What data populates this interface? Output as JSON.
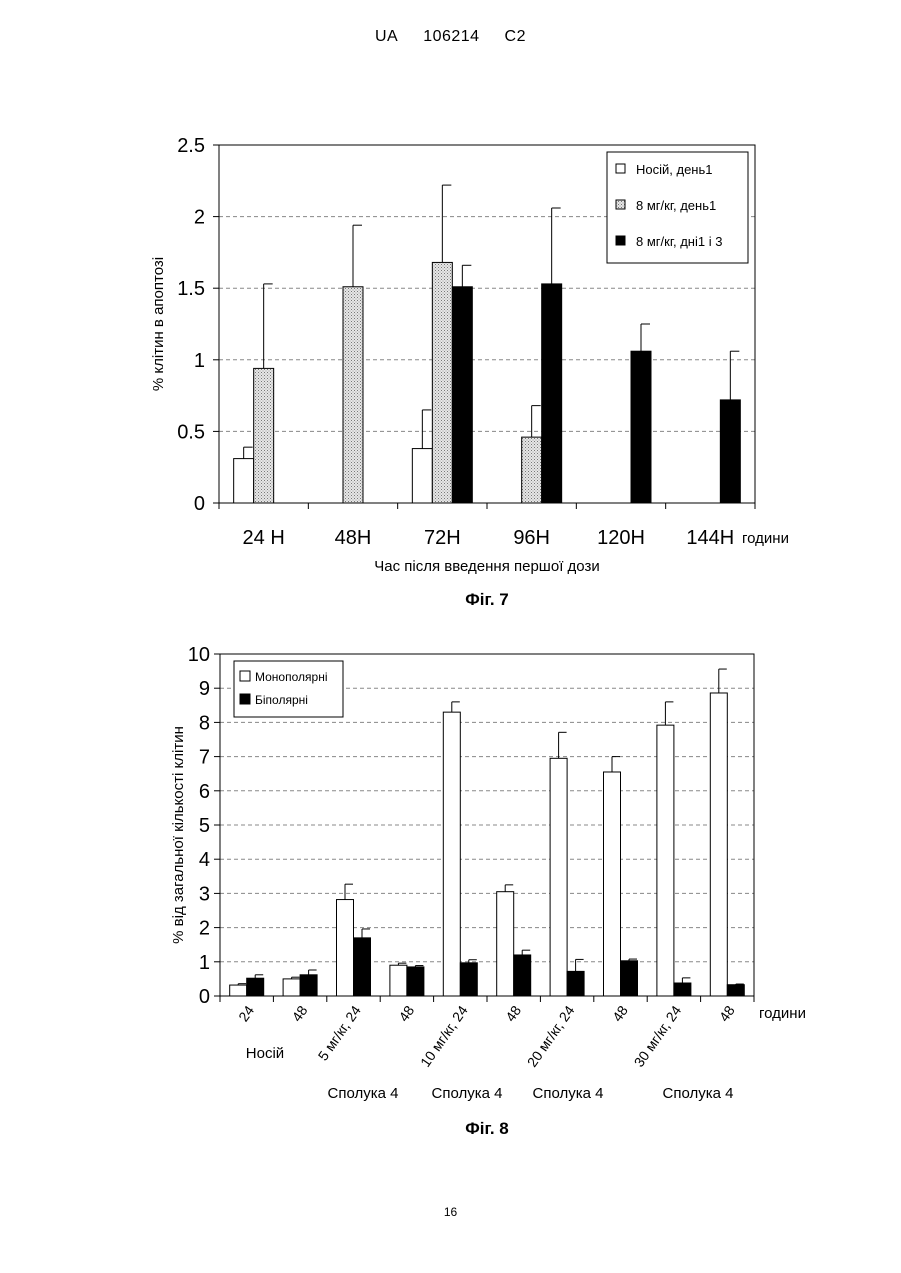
{
  "header": {
    "office": "UA",
    "number": "106214",
    "kind": "C2"
  },
  "page_number": "16",
  "chart_data": [
    {
      "type": "bar",
      "caption": "Фіг. 7",
      "ylabel": "% клітин в апоптозі",
      "xlabel": "Час після введення першої дози",
      "x_unit_label": "години",
      "ylim": [
        0,
        2.5
      ],
      "yticks": [
        "0",
        "0.5",
        "1",
        "1.5",
        "2",
        "2.5"
      ],
      "grid": true,
      "legend_position": "top-right",
      "categories": [
        "24 H",
        "48H",
        "72H",
        "96H",
        "120H",
        "144H"
      ],
      "series": [
        {
          "name": "Носій, день1",
          "color": "#ffffff",
          "values": [
            0.31,
            null,
            0.38,
            null,
            null,
            null
          ],
          "errors": [
            0.08,
            null,
            0.27,
            null,
            null,
            null
          ]
        },
        {
          "name": "8 мг/кг, день1",
          "color": "#d4d4d4",
          "values": [
            0.94,
            1.51,
            1.68,
            0.46,
            null,
            null
          ],
          "errors": [
            0.59,
            0.43,
            0.54,
            0.22,
            null,
            null
          ]
        },
        {
          "name": "8 мг/кг, дні1 і 3",
          "color": "#000000",
          "values": [
            null,
            null,
            1.51,
            1.53,
            1.06,
            0.72
          ],
          "errors": [
            null,
            null,
            0.15,
            0.53,
            0.19,
            0.34
          ]
        }
      ]
    },
    {
      "type": "bar",
      "caption": "Фіг. 8",
      "ylabel": "% від загальної кількості клітин",
      "x_unit_label": "години",
      "ylim": [
        0,
        10
      ],
      "yticks": [
        "0",
        "1",
        "2",
        "3",
        "4",
        "5",
        "6",
        "7",
        "8",
        "9",
        "10"
      ],
      "grid": true,
      "legend_position": "top-left",
      "categories": [
        "24",
        "48",
        "5 мг/кг, 24",
        "48",
        "10 мг/кг, 24",
        "48",
        "20 мг/кг, 24",
        "48",
        "30 мг/кг, 24",
        "48"
      ],
      "group_labels": [
        "Носій",
        "Сполука 4",
        "Сполука 4",
        "Сполука 4",
        "Сполука 4"
      ],
      "series": [
        {
          "name": "Монополярні",
          "color": "#ffffff",
          "values": [
            0.32,
            0.5,
            2.82,
            0.9,
            8.3,
            3.05,
            6.95,
            6.55,
            7.92,
            8.86
          ],
          "errors": [
            0.04,
            0.05,
            0.45,
            0.06,
            0.3,
            0.2,
            0.76,
            0.45,
            0.68,
            0.7
          ]
        },
        {
          "name": "Біполярні",
          "color": "#000000",
          "values": [
            0.52,
            0.62,
            1.7,
            0.85,
            0.97,
            1.2,
            0.72,
            1.03,
            0.38,
            0.33
          ],
          "errors": [
            0.1,
            0.14,
            0.26,
            0.04,
            0.09,
            0.14,
            0.35,
            0.05,
            0.15,
            0.02
          ]
        }
      ]
    }
  ]
}
